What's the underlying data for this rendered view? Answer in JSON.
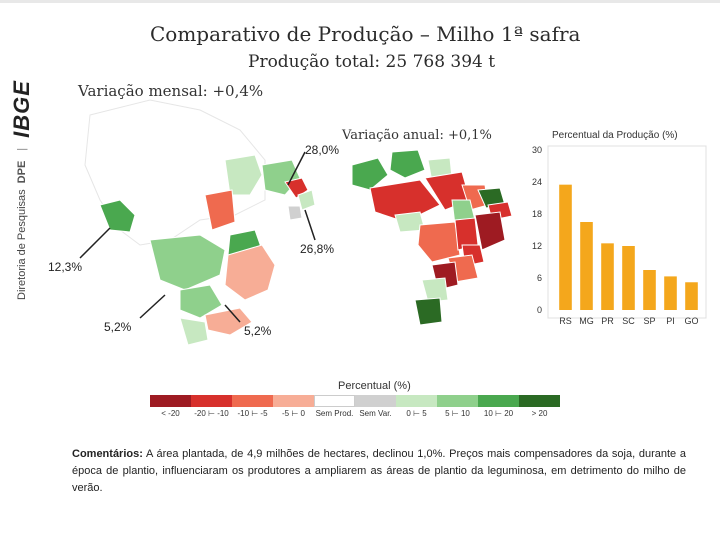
{
  "sidebar": {
    "dept_text": "Diretoria de Pesquisas",
    "dept_abbr": "DPE",
    "logo_text": "IBGE"
  },
  "header": {
    "title": "Comparativo de Produção – Milho 1ª safra",
    "subtitle": "Produção total: 25 768 394 t"
  },
  "maps": {
    "monthly_label": "Variação mensal: +0,4%",
    "annual_label": "Variação anual: +0,1%",
    "callouts": [
      "28,0%",
      "26,8%",
      "12,3%",
      "5,2%",
      "5,2%"
    ]
  },
  "legend": {
    "title": "Percentual (%)",
    "items": [
      {
        "label": "< -20",
        "color": "#9e1b22"
      },
      {
        "label": "-20 ⊢ -10",
        "color": "#d7302c"
      },
      {
        "label": "-10 ⊢ -5",
        "color": "#ef6a4f"
      },
      {
        "label": "-5 ⊢ 0",
        "color": "#f7ad96"
      },
      {
        "label": "Sem Prod.",
        "color": "#ffffff"
      },
      {
        "label": "Sem Var.",
        "color": "#d0d0d0"
      },
      {
        "label": "0 ⊢ 5",
        "color": "#c7e8c1"
      },
      {
        "label": "5 ⊢ 10",
        "color": "#8fd08c"
      },
      {
        "label": "10 ⊢ 20",
        "color": "#4aa84f"
      },
      {
        "label": "> 20",
        "color": "#2b6a24"
      }
    ]
  },
  "chart_data": {
    "type": "bar",
    "title": "Percentual da Produção (%)",
    "categories": [
      "RS",
      "MG",
      "PR",
      "SC",
      "SP",
      "PI",
      "GO"
    ],
    "values": [
      23.5,
      16.5,
      12.5,
      12.0,
      7.5,
      6.3,
      5.2
    ],
    "ylim": [
      0,
      30
    ],
    "yticks": [
      0,
      6,
      12,
      18,
      24,
      30
    ],
    "bar_color": "#f4a71c"
  },
  "comment": {
    "label": "Comentários:",
    "text": " A área plantada, de 4,9 milhões de hectares, declinou 1,0%. Preços mais compensadores da soja, durante a época de plantio, influenciaram os produtores a ampliarem as áreas de plantio da leguminosa, em detrimento do milho de verão."
  }
}
